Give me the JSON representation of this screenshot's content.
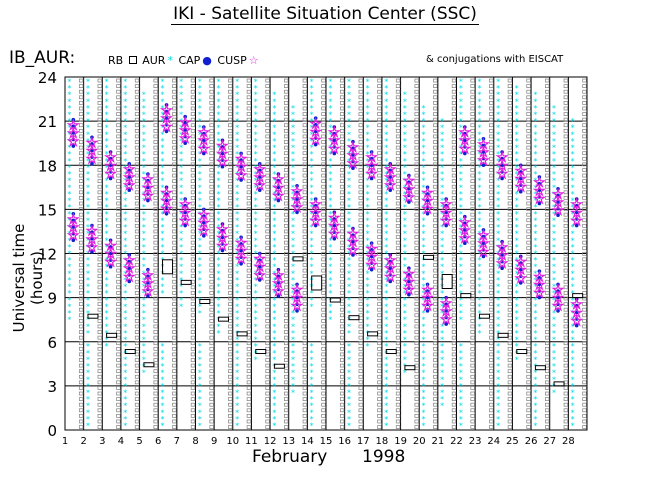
{
  "title": "IKI - Satellite Situation Center (SSC)",
  "series_label": "IB_AUR:",
  "legend": {
    "rb": "RB",
    "aur": "AUR",
    "cap": "CAP",
    "cusp": "CUSP"
  },
  "conjugations": "& conjugations with EISCAT",
  "colors": {
    "rb": "#000000",
    "aur": "#808080",
    "cap": "#00d8e8",
    "cusp_dot": "#1020d0",
    "cusp_star": "#e020e0"
  },
  "chart_data": {
    "type": "scatter",
    "title": "IKI - Satellite Situation Center (SSC)",
    "xlabel_month": "February",
    "xlabel_year": "1998",
    "ylabel": "Universal time (hours)",
    "ylim": [
      0,
      24
    ],
    "xlim": [
      1,
      29
    ],
    "yticks": [
      0,
      3,
      6,
      9,
      12,
      15,
      18,
      21,
      24
    ],
    "xticks": [
      1,
      2,
      3,
      4,
      5,
      6,
      7,
      8,
      9,
      10,
      11,
      12,
      13,
      14,
      15,
      16,
      17,
      18,
      19,
      20,
      21,
      22,
      23,
      24,
      25,
      26,
      27,
      28
    ],
    "rb_boxes": [
      {
        "day": 2,
        "hour": 7.6
      },
      {
        "day": 3,
        "hour": 6.3
      },
      {
        "day": 4,
        "hour": 5.2
      },
      {
        "day": 5,
        "hour": 4.3
      },
      {
        "day": 6,
        "hour": 11.3
      },
      {
        "day": 7,
        "hour": 9.9
      },
      {
        "day": 8,
        "hour": 8.6
      },
      {
        "day": 9,
        "hour": 7.4
      },
      {
        "day": 10,
        "hour": 6.4
      },
      {
        "day": 11,
        "hour": 5.2
      },
      {
        "day": 12,
        "hour": 4.2
      },
      {
        "day": 13,
        "hour": 11.5
      },
      {
        "day": 14,
        "hour": 10.2
      },
      {
        "day": 15,
        "hour": 8.7
      },
      {
        "day": 16,
        "hour": 7.5
      },
      {
        "day": 17,
        "hour": 6.4
      },
      {
        "day": 18,
        "hour": 5.2
      },
      {
        "day": 19,
        "hour": 4.1
      },
      {
        "day": 20,
        "hour": 11.6
      },
      {
        "day": 21,
        "hour": 10.3
      },
      {
        "day": 22,
        "hour": 9.0
      },
      {
        "day": 23,
        "hour": 7.6
      },
      {
        "day": 24,
        "hour": 6.3
      },
      {
        "day": 25,
        "hour": 5.2
      },
      {
        "day": 26,
        "hour": 4.1
      },
      {
        "day": 27,
        "hour": 3.0
      },
      {
        "day": 28,
        "hour": 9.0
      }
    ],
    "cusp_star_hours": [
      [
        20.2,
        13.8
      ],
      [
        19.0,
        13.0
      ],
      [
        18.0,
        12.0
      ],
      [
        17.2,
        11.0
      ],
      [
        16.5,
        10.0
      ],
      [
        21.2,
        15.6
      ],
      [
        20.4,
        14.8
      ],
      [
        19.7,
        14.1
      ],
      [
        18.8,
        13.1
      ],
      [
        17.9,
        12.2
      ],
      [
        17.2,
        11.1
      ],
      [
        16.5,
        10.0
      ],
      [
        15.7,
        9.0
      ],
      [
        20.3,
        14.8
      ],
      [
        19.7,
        13.9
      ],
      [
        18.7,
        12.8
      ],
      [
        18.0,
        11.8
      ],
      [
        17.2,
        11.0
      ],
      [
        16.4,
        10.1
      ],
      [
        15.6,
        9.0
      ],
      [
        14.8,
        8.1
      ],
      [
        19.7,
        13.6
      ],
      [
        18.9,
        12.7
      ],
      [
        18.0,
        11.9
      ],
      [
        17.1,
        10.9
      ],
      [
        16.3,
        9.9
      ],
      [
        15.5,
        9.0
      ],
      [
        14.8,
        8.0
      ]
    ]
  }
}
